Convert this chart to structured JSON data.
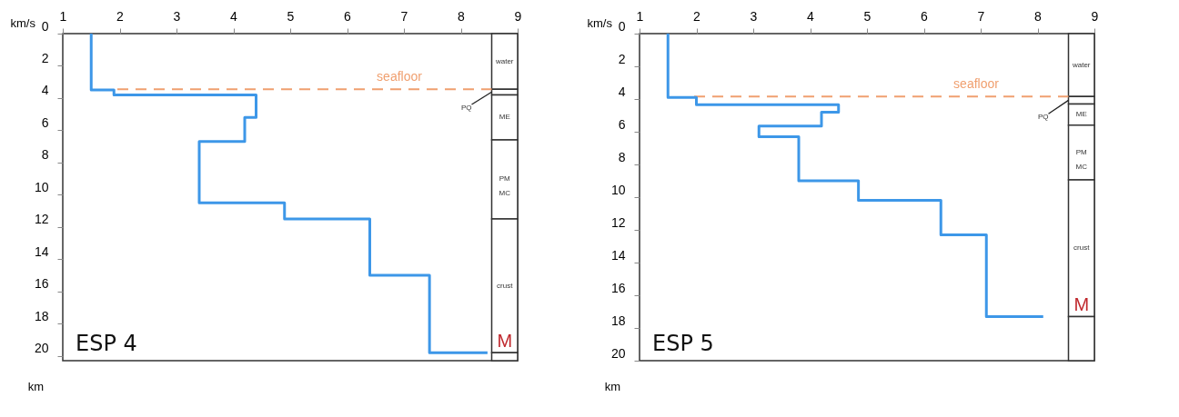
{
  "chart_data": [
    {
      "type": "line",
      "xlabel": "km/s",
      "ylabel": "km",
      "xlim": [
        1,
        9
      ],
      "xticks": [
        1,
        2,
        3,
        4,
        5,
        6,
        7,
        8,
        9
      ],
      "ylim": [
        20.3,
        0
      ],
      "yticks": [
        0,
        2,
        4,
        6,
        8,
        10,
        12,
        14,
        16,
        18,
        20
      ],
      "grid": false,
      "marker": "none",
      "line_style": "solid",
      "series": [
        {
          "color": "#3d97e8",
          "x": [
            1.5,
            1.5,
            1.9,
            1.9,
            4.4,
            4.4,
            4.2,
            4.2,
            3.4,
            3.4,
            4.9,
            4.9,
            6.4,
            6.4,
            7.45,
            7.45,
            8.47
          ],
          "values": [
            0,
            3.5,
            3.5,
            3.8,
            3.8,
            5.2,
            5.2,
            6.7,
            6.7,
            10.5,
            10.5,
            11.5,
            11.5,
            15.0,
            15.0,
            19.8,
            19.8
          ]
        }
      ],
      "ref_lines": [
        {
          "axis": "y",
          "value": 3.45,
          "label": "seafloor",
          "color": "#f0a070",
          "line_style": "dashed"
        }
      ],
      "bands": [
        {
          "axis": "y",
          "from": 0,
          "to": 3.45,
          "label": "water"
        },
        {
          "axis": "y",
          "from": 3.45,
          "to": 3.8,
          "label": "PQ"
        },
        {
          "axis": "y",
          "from": 3.8,
          "to": 6.6,
          "label": "ME"
        },
        {
          "axis": "y",
          "from": 6.6,
          "to": 11.5,
          "label": "PM\nMC"
        },
        {
          "axis": "y",
          "from": 11.5,
          "to": 19.8,
          "label": "crust"
        },
        {
          "axis": "y",
          "from": 19.8,
          "to": 20.3
        }
      ],
      "annotations": [
        "ESP 4",
        "M"
      ]
    },
    {
      "type": "line",
      "xlabel": "km/s",
      "ylabel": "km",
      "xlim": [
        1,
        9
      ],
      "xticks": [
        1,
        2,
        3,
        4,
        5,
        6,
        7,
        8,
        9
      ],
      "ylim": [
        20,
        0
      ],
      "yticks": [
        0,
        2,
        4,
        6,
        8,
        10,
        12,
        14,
        16,
        18,
        20
      ],
      "grid": false,
      "marker": "none",
      "line_style": "solid",
      "series": [
        {
          "color": "#3d97e8",
          "x": [
            1.5,
            1.5,
            2.0,
            2.0,
            4.5,
            4.5,
            4.2,
            4.2,
            3.1,
            3.1,
            3.8,
            3.8,
            4.85,
            4.85,
            6.3,
            6.3,
            7.1,
            7.1,
            8.1
          ],
          "values": [
            0,
            3.9,
            3.9,
            4.35,
            4.35,
            4.8,
            4.8,
            5.65,
            5.65,
            6.3,
            6.3,
            9.0,
            9.0,
            10.2,
            10.2,
            12.3,
            12.3,
            17.3,
            17.3
          ]
        }
      ],
      "ref_lines": [
        {
          "axis": "y",
          "value": 3.85,
          "label": "seafloor",
          "color": "#f0a070",
          "line_style": "dashed"
        }
      ],
      "bands": [
        {
          "axis": "y",
          "from": 0,
          "to": 3.85,
          "label": "water"
        },
        {
          "axis": "y",
          "from": 3.85,
          "to": 4.3,
          "label": "PQ"
        },
        {
          "axis": "y",
          "from": 4.3,
          "to": 5.6,
          "label": "ME"
        },
        {
          "axis": "y",
          "from": 5.6,
          "to": 8.95,
          "label": "PM\nMC"
        },
        {
          "axis": "y",
          "from": 8.95,
          "to": 17.3,
          "label": "crust"
        },
        {
          "axis": "y",
          "from": 17.3,
          "to": 20
        }
      ],
      "annotations": [
        "ESP 5",
        "M"
      ]
    }
  ]
}
